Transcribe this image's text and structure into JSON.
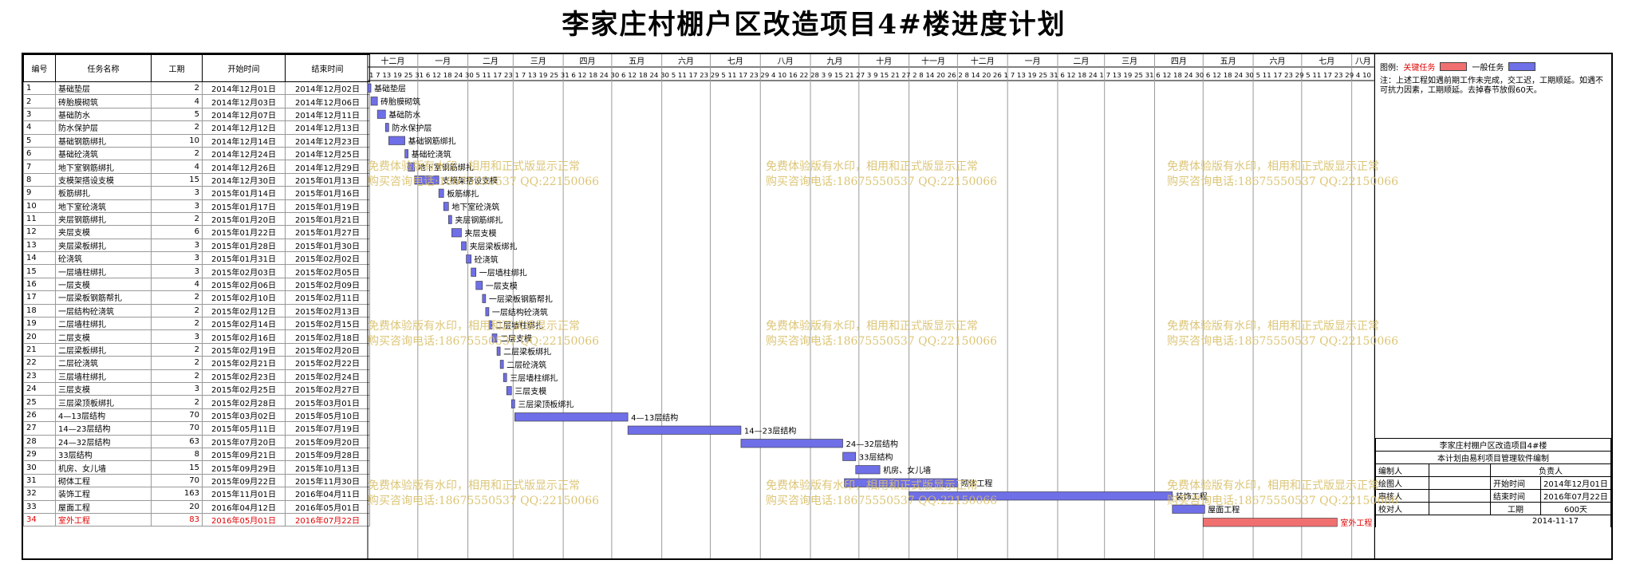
{
  "page_title": "李家庄村棚户区改造项目4#楼进度计划",
  "headers": {
    "num": "编号",
    "name": "任务名称",
    "dur": "工期",
    "start": "开始时间",
    "end": "结束时间"
  },
  "timeline": {
    "months": [
      "十二月",
      "一月",
      "二月",
      "三月",
      "四月",
      "五月",
      "六月",
      "七月",
      "八月",
      "九月",
      "十月",
      "十一月",
      "十二月",
      "一月",
      "二月",
      "三月",
      "四月",
      "五月",
      "六月",
      "七月",
      "八月"
    ],
    "day_row": "1 7 13 19 25 31 6 12 18 24 30 5 11 17 23 1 7 13 19 25 31 6 12 18 24 30 6 12 18 24 30 5 11 17 23 29 5 11 17 23 29 4 10 16 22 28 3 9 15 21 27 3 9 15 21 27 2 8 14 20 26 2 8 14 20 26 1 7 13 19 25 31 6 12 18 24 1 7 13 19 25 31 6 12 18 24 30 6 12 18 24 30 5 11 17 23 29 5 11 17 23 29 4 10"
  },
  "tasks": [
    {
      "id": "1",
      "name": "基础垫层",
      "dur": 2,
      "start": "2014年12月01日",
      "end": "2014年12月02日"
    },
    {
      "id": "2",
      "name": "砖胎膜砌筑",
      "dur": 4,
      "start": "2014年12月03日",
      "end": "2014年12月06日"
    },
    {
      "id": "3",
      "name": "基础防水",
      "dur": 5,
      "start": "2014年12月07日",
      "end": "2014年12月11日"
    },
    {
      "id": "4",
      "name": "防水保护层",
      "dur": 2,
      "start": "2014年12月12日",
      "end": "2014年12月13日"
    },
    {
      "id": "5",
      "name": "基础钢筋绑扎",
      "dur": 10,
      "start": "2014年12月14日",
      "end": "2014年12月23日"
    },
    {
      "id": "6",
      "name": "基础砼浇筑",
      "dur": 2,
      "start": "2014年12月24日",
      "end": "2014年12月25日"
    },
    {
      "id": "7",
      "name": "地下室钢筋绑扎",
      "dur": 4,
      "start": "2014年12月26日",
      "end": "2014年12月29日"
    },
    {
      "id": "8",
      "name": "支模架搭设支模",
      "dur": 15,
      "start": "2014年12月30日",
      "end": "2015年01月13日"
    },
    {
      "id": "9",
      "name": "板筋绑扎",
      "dur": 3,
      "start": "2015年01月14日",
      "end": "2015年01月16日"
    },
    {
      "id": "10",
      "name": "地下室砼浇筑",
      "dur": 3,
      "start": "2015年01月17日",
      "end": "2015年01月19日"
    },
    {
      "id": "11",
      "name": "夹层钢筋绑扎",
      "dur": 2,
      "start": "2015年01月20日",
      "end": "2015年01月21日"
    },
    {
      "id": "12",
      "name": "夹层支模",
      "dur": 6,
      "start": "2015年01月22日",
      "end": "2015年01月27日"
    },
    {
      "id": "13",
      "name": "夹层梁板绑扎",
      "dur": 3,
      "start": "2015年01月28日",
      "end": "2015年01月30日"
    },
    {
      "id": "14",
      "name": "砼浇筑",
      "dur": 3,
      "start": "2015年01月31日",
      "end": "2015年02月02日"
    },
    {
      "id": "15",
      "name": "一层墙柱绑扎",
      "dur": 3,
      "start": "2015年02月03日",
      "end": "2015年02月05日"
    },
    {
      "id": "16",
      "name": "一层支模",
      "dur": 4,
      "start": "2015年02月06日",
      "end": "2015年02月09日"
    },
    {
      "id": "17",
      "name": "一层梁板钢筋帮扎",
      "dur": 2,
      "start": "2015年02月10日",
      "end": "2015年02月11日"
    },
    {
      "id": "18",
      "name": "一层结构砼浇筑",
      "dur": 2,
      "start": "2015年02月12日",
      "end": "2015年02月13日"
    },
    {
      "id": "19",
      "name": "二层墙柱绑扎",
      "dur": 2,
      "start": "2015年02月14日",
      "end": "2015年02月15日"
    },
    {
      "id": "20",
      "name": "二层支模",
      "dur": 3,
      "start": "2015年02月16日",
      "end": "2015年02月18日"
    },
    {
      "id": "21",
      "name": "二层梁板绑扎",
      "dur": 2,
      "start": "2015年02月19日",
      "end": "2015年02月20日"
    },
    {
      "id": "22",
      "name": "二层砼浇筑",
      "dur": 2,
      "start": "2015年02月21日",
      "end": "2015年02月22日"
    },
    {
      "id": "23",
      "name": "三层墙柱绑扎",
      "dur": 2,
      "start": "2015年02月23日",
      "end": "2015年02月24日"
    },
    {
      "id": "24",
      "name": "三层支模",
      "dur": 3,
      "start": "2015年02月25日",
      "end": "2015年02月27日"
    },
    {
      "id": "25",
      "name": "三层梁顶板绑扎",
      "dur": 2,
      "start": "2015年02月28日",
      "end": "2015年03月01日"
    },
    {
      "id": "26",
      "name": "4—13层结构",
      "dur": 70,
      "start": "2015年03月02日",
      "end": "2015年05月10日"
    },
    {
      "id": "27",
      "name": "14—23层结构",
      "dur": 70,
      "start": "2015年05月11日",
      "end": "2015年07月19日"
    },
    {
      "id": "28",
      "name": "24—32层结构",
      "dur": 63,
      "start": "2015年07月20日",
      "end": "2015年09月20日"
    },
    {
      "id": "29",
      "name": "33层结构",
      "dur": 8,
      "start": "2015年09月21日",
      "end": "2015年09月28日"
    },
    {
      "id": "30",
      "name": "机房、女儿墙",
      "dur": 15,
      "start": "2015年09月29日",
      "end": "2015年10月13日"
    },
    {
      "id": "31",
      "name": "砌体工程",
      "dur": 70,
      "start": "2015年09月22日",
      "end": "2015年11月30日"
    },
    {
      "id": "32",
      "name": "装饰工程",
      "dur": 163,
      "start": "2015年11月01日",
      "end": "2016年04月11日"
    },
    {
      "id": "33",
      "name": "屋面工程",
      "dur": 20,
      "start": "2016年04月12日",
      "end": "2016年05月01日"
    },
    {
      "id": "34",
      "name": "室外工程",
      "dur": 83,
      "start": "2016年05月01日",
      "end": "2016年07月22日",
      "critical": true
    }
  ],
  "legend": {
    "title": "图例:",
    "critical_label": "关键任务",
    "normal_label": "一般任务"
  },
  "note": "注：上述工程如遇前期工作未完成，交工迟，工期顺延。如遇不可抗力因素，工期顺延。去掉春节放假60天。",
  "footer": {
    "project": "李家庄村棚户区改造项目4#楼",
    "software": "本计划由易利项目管理软件编制",
    "compiler_label": "编制人",
    "principal_label": "负责人",
    "checker_label": "绘图人",
    "start_label": "开始时间",
    "start_value": "2014年12月01日",
    "reviewer_label": "审核人",
    "end_label": "结束时间",
    "end_value": "2016年07月22日",
    "proof_label": "校对人",
    "duration_label": "工期",
    "duration_value": "600天",
    "date": "2014-11-17"
  },
  "watermark": {
    "line1": "免费体验版有水印，相用和正式版显示正常",
    "line2": "购买咨询电话:18675550537 QQ:22150066"
  },
  "colors": {
    "normal": "#6f6fe8",
    "critical": "#f07070",
    "critical_text": "#e00000",
    "watermark": "#d9c06a"
  },
  "chart_data": {
    "type": "gantt",
    "title": "李家庄村棚户区改造项目4#楼进度计划",
    "x_range": [
      "2014-12-01",
      "2016-08-15"
    ],
    "series": [
      {
        "name": "一般任务",
        "tasks": [
          "1-33"
        ]
      },
      {
        "name": "关键任务",
        "tasks": [
          "34"
        ]
      }
    ]
  }
}
